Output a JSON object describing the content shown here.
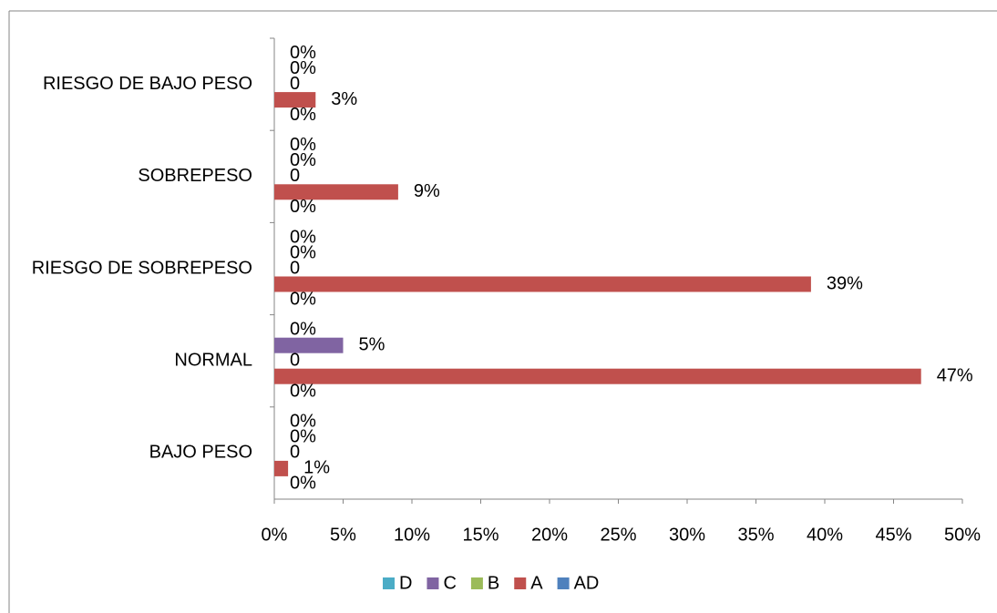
{
  "chart_data": {
    "type": "bar",
    "orientation": "horizontal",
    "categories": [
      "BAJO PESO",
      "NORMAL",
      "RIESGO DE SOBREPESO",
      "SOBREPESO",
      "RIESGO DE BAJO PESO"
    ],
    "series": [
      {
        "name": "D",
        "color": "#4bacc6",
        "values": [
          0,
          0,
          0,
          0,
          0
        ],
        "value_labels": [
          "0%",
          "0%",
          "0%",
          "0%",
          "0%"
        ]
      },
      {
        "name": "C",
        "color": "#8064a2",
        "values": [
          0,
          5,
          0,
          0,
          0
        ],
        "value_labels": [
          "0%",
          "5%",
          "0%",
          "0%",
          "0%"
        ]
      },
      {
        "name": "B",
        "color": "#9bbb59",
        "values": [
          0,
          0,
          0,
          0,
          0
        ],
        "value_labels": [
          "0",
          "0",
          "0",
          "0",
          "0"
        ]
      },
      {
        "name": "A",
        "color": "#c0504d",
        "values": [
          1,
          47,
          39,
          9,
          3
        ],
        "value_labels": [
          "1%",
          "47%",
          "39%",
          "9%",
          "3%"
        ]
      },
      {
        "name": "AD",
        "color": "#4f81bd",
        "values": [
          0,
          0,
          0,
          0,
          0
        ],
        "value_labels": [
          "0%",
          "0%",
          "0%",
          "0%",
          "0%"
        ]
      }
    ],
    "xlim": [
      0,
      50
    ],
    "xticks": [
      {
        "value": 0,
        "label": "0%"
      },
      {
        "value": 5,
        "label": "5%"
      },
      {
        "value": 10,
        "label": "10%"
      },
      {
        "value": 15,
        "label": "15%"
      },
      {
        "value": 20,
        "label": "20%"
      },
      {
        "value": 25,
        "label": "25%"
      },
      {
        "value": 30,
        "label": "30%"
      },
      {
        "value": 35,
        "label": "35%"
      },
      {
        "value": 40,
        "label": "40%"
      },
      {
        "value": 45,
        "label": "45%"
      },
      {
        "value": 50,
        "label": "50%"
      }
    ],
    "legend": "bottom"
  }
}
